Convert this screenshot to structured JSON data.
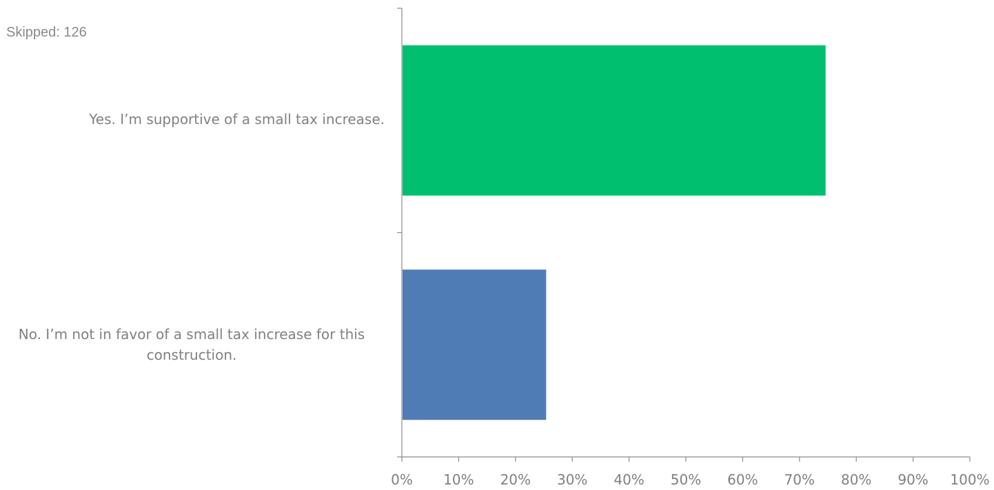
{
  "header": {
    "skipped_text": "Skipped: 126"
  },
  "chart_data": {
    "type": "bar",
    "orientation": "horizontal",
    "categories": [
      "Yes. I’m supportive of a small tax increase.",
      "No.  I’m not in favor of a small tax increase for this construction."
    ],
    "category_lines": [
      [
        "Yes. I’m supportive of a small tax increase."
      ],
      [
        "No.  I’m not in favor of a small tax increase for this",
        "construction."
      ]
    ],
    "values": [
      74.6,
      25.4
    ],
    "colors": [
      "#00bf6f",
      "#507cb6"
    ],
    "xlim": [
      0,
      100
    ],
    "xticks": [
      "0%",
      "10%",
      "20%",
      "30%",
      "40%",
      "50%",
      "60%",
      "70%",
      "80%",
      "90%",
      "100%"
    ],
    "title": "",
    "xlabel": "",
    "ylabel": "",
    "grid": false,
    "legend": "none"
  }
}
